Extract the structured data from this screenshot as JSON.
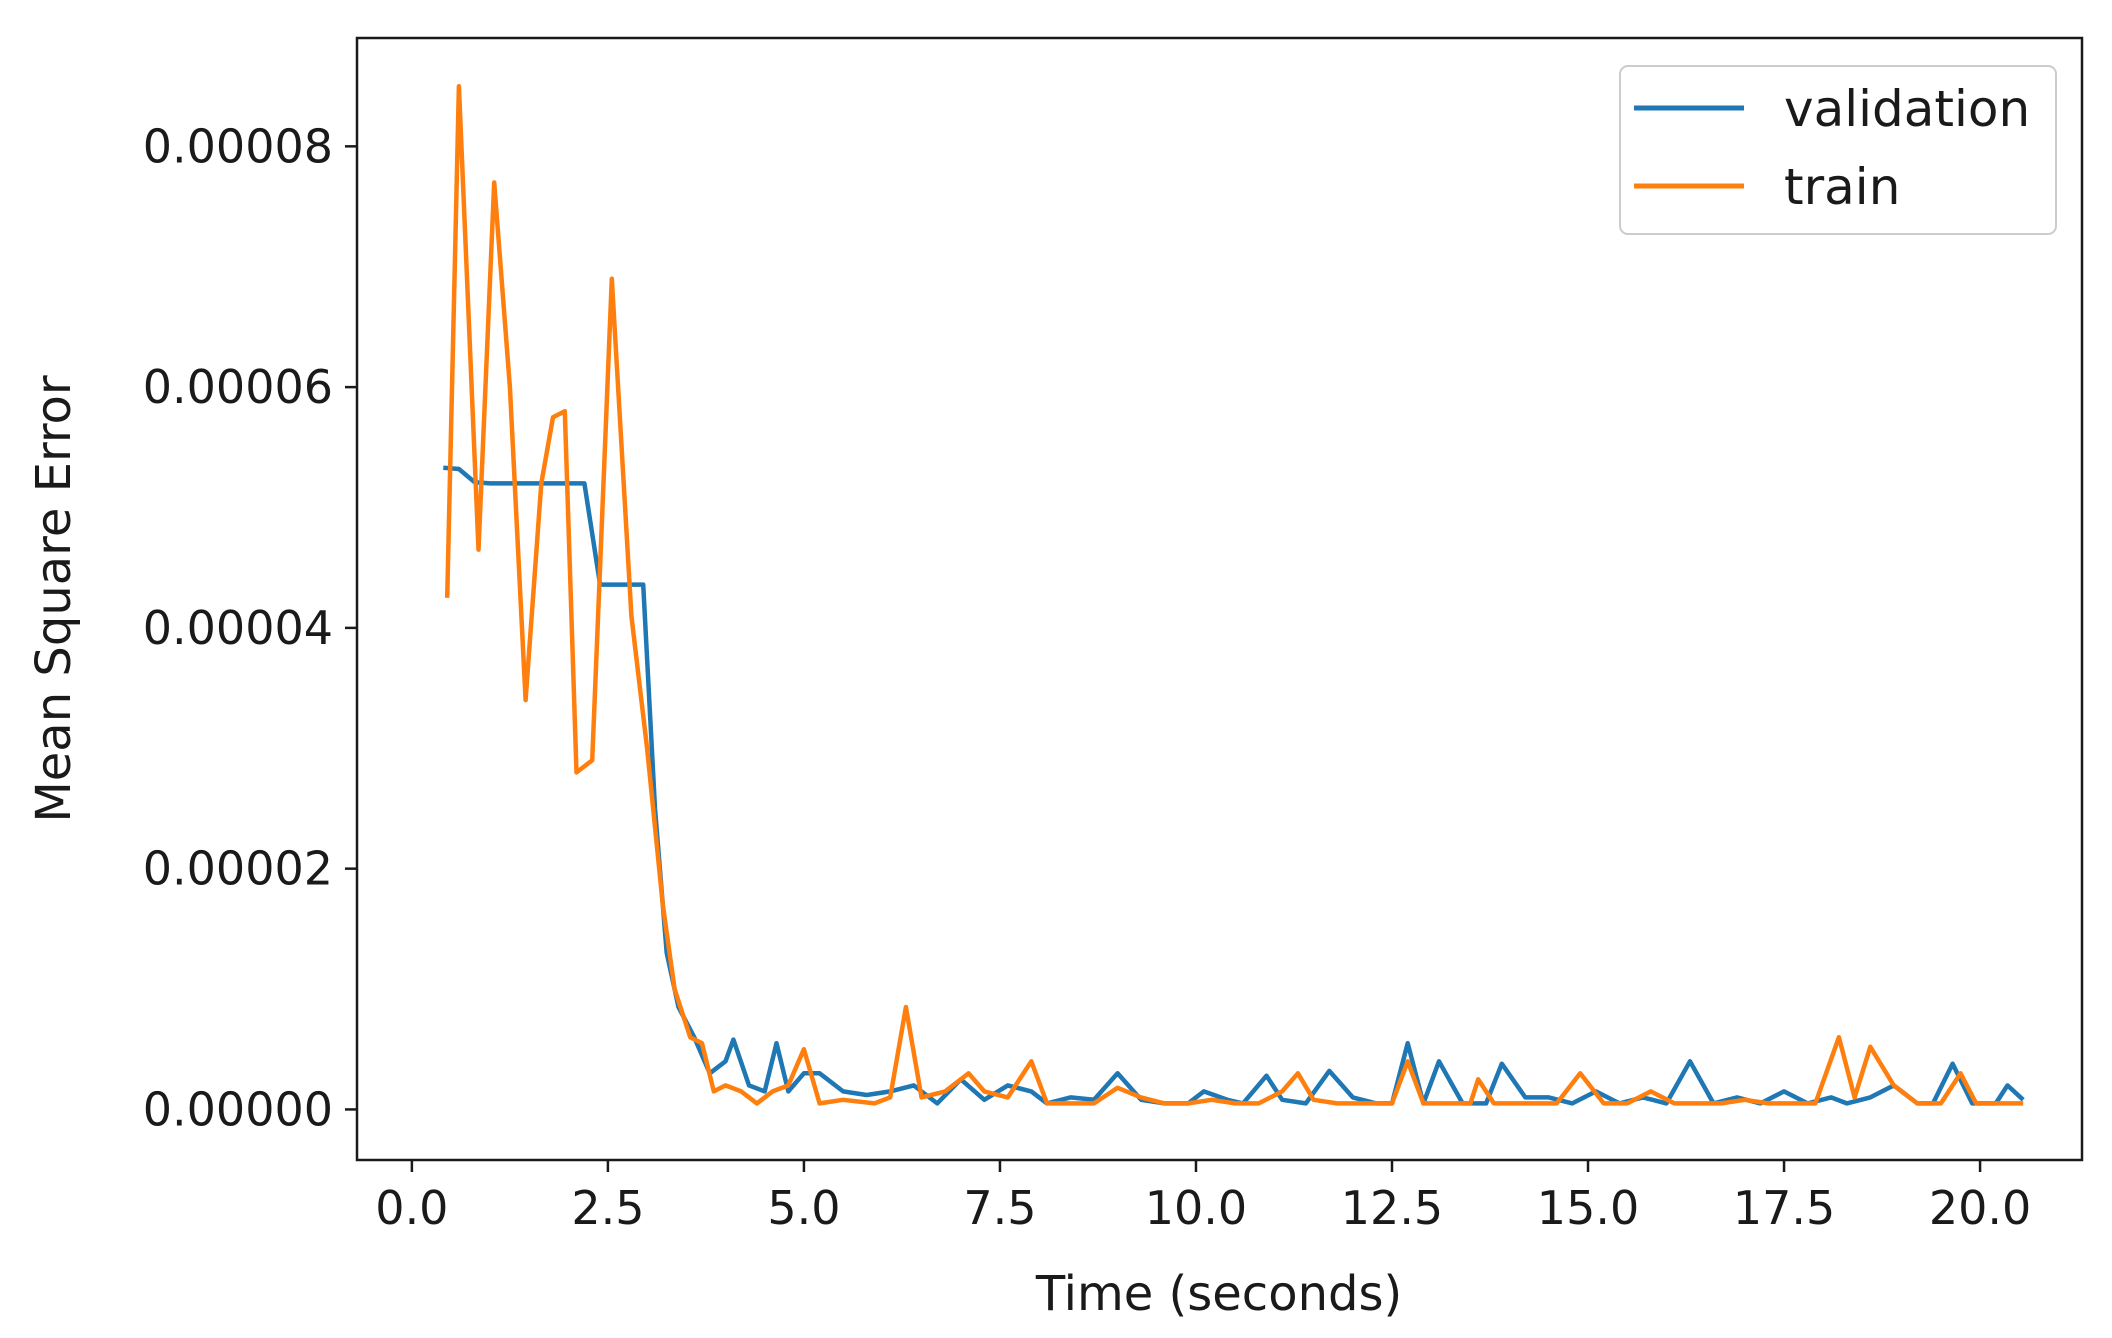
{
  "chart_data": {
    "type": "line",
    "title": "",
    "xlabel": "Time (seconds)",
    "ylabel": "Mean Square Error",
    "xlim": [
      -0.7,
      21.3
    ],
    "ylim": [
      -4.2e-06,
      8.9e-05
    ],
    "xticks": [
      {
        "value": 0.0,
        "label": "0.0"
      },
      {
        "value": 2.5,
        "label": "2.5"
      },
      {
        "value": 5.0,
        "label": "5.0"
      },
      {
        "value": 7.5,
        "label": "7.5"
      },
      {
        "value": 10.0,
        "label": "10.0"
      },
      {
        "value": 12.5,
        "label": "12.5"
      },
      {
        "value": 15.0,
        "label": "15.0"
      },
      {
        "value": 17.5,
        "label": "17.5"
      },
      {
        "value": 20.0,
        "label": "20.0"
      }
    ],
    "yticks": [
      {
        "value": 0.0,
        "label": "0.00000"
      },
      {
        "value": 2e-05,
        "label": "0.00002"
      },
      {
        "value": 4e-05,
        "label": "0.00004"
      },
      {
        "value": 6e-05,
        "label": "0.00006"
      },
      {
        "value": 8e-05,
        "label": "0.00008"
      }
    ],
    "grid": false,
    "legend_position": "top-right",
    "series": [
      {
        "name": "validation",
        "color": "#1f77b4",
        "points": [
          [
            0.4,
            5.33e-05
          ],
          [
            0.6,
            5.32e-05
          ],
          [
            0.8,
            5.21e-05
          ],
          [
            1.0,
            5.2e-05
          ],
          [
            1.3,
            5.2e-05
          ],
          [
            1.6,
            5.2e-05
          ],
          [
            1.9,
            5.2e-05
          ],
          [
            2.1,
            5.2e-05
          ],
          [
            2.2,
            5.2e-05
          ],
          [
            2.4,
            4.36e-05
          ],
          [
            2.6,
            4.36e-05
          ],
          [
            2.8,
            4.36e-05
          ],
          [
            2.95,
            4.36e-05
          ],
          [
            3.1,
            2.5e-05
          ],
          [
            3.25,
            1.3e-05
          ],
          [
            3.4,
            8.5e-06
          ],
          [
            3.6,
            6e-06
          ],
          [
            3.8,
            3e-06
          ],
          [
            4.0,
            4e-06
          ],
          [
            4.1,
            5.8e-06
          ],
          [
            4.3,
            2e-06
          ],
          [
            4.5,
            1.5e-06
          ],
          [
            4.65,
            5.5e-06
          ],
          [
            4.8,
            1.5e-06
          ],
          [
            5.0,
            3e-06
          ],
          [
            5.2,
            3e-06
          ],
          [
            5.5,
            1.5e-06
          ],
          [
            5.8,
            1.2e-06
          ],
          [
            6.1,
            1.5e-06
          ],
          [
            6.4,
            2e-06
          ],
          [
            6.7,
            5e-07
          ],
          [
            7.0,
            2.5e-06
          ],
          [
            7.3,
            8e-07
          ],
          [
            7.6,
            2e-06
          ],
          [
            7.9,
            1.5e-06
          ],
          [
            8.1,
            5e-07
          ],
          [
            8.4,
            1e-06
          ],
          [
            8.7,
            8e-07
          ],
          [
            9.0,
            3e-06
          ],
          [
            9.3,
            8e-07
          ],
          [
            9.6,
            5e-07
          ],
          [
            9.9,
            5e-07
          ],
          [
            10.1,
            1.5e-06
          ],
          [
            10.4,
            8e-07
          ],
          [
            10.6,
            5e-07
          ],
          [
            10.9,
            2.8e-06
          ],
          [
            11.1,
            8e-07
          ],
          [
            11.4,
            5e-07
          ],
          [
            11.7,
            3.2e-06
          ],
          [
            12.0,
            1e-06
          ],
          [
            12.3,
            5e-07
          ],
          [
            12.5,
            5e-07
          ],
          [
            12.7,
            5.5e-06
          ],
          [
            12.9,
            5e-07
          ],
          [
            13.1,
            4e-06
          ],
          [
            13.4,
            5e-07
          ],
          [
            13.7,
            5e-07
          ],
          [
            13.9,
            3.8e-06
          ],
          [
            14.2,
            1e-06
          ],
          [
            14.5,
            1e-06
          ],
          [
            14.8,
            5e-07
          ],
          [
            15.1,
            1.5e-06
          ],
          [
            15.4,
            5e-07
          ],
          [
            15.7,
            1e-06
          ],
          [
            16.0,
            5e-07
          ],
          [
            16.3,
            4e-06
          ],
          [
            16.6,
            5e-07
          ],
          [
            16.9,
            1e-06
          ],
          [
            17.2,
            5e-07
          ],
          [
            17.5,
            1.5e-06
          ],
          [
            17.8,
            5e-07
          ],
          [
            18.1,
            1e-06
          ],
          [
            18.3,
            5e-07
          ],
          [
            18.6,
            1e-06
          ],
          [
            18.9,
            2e-06
          ],
          [
            19.2,
            5e-07
          ],
          [
            19.4,
            5e-07
          ],
          [
            19.65,
            3.8e-06
          ],
          [
            19.9,
            5e-07
          ],
          [
            20.2,
            5e-07
          ],
          [
            20.35,
            2e-06
          ],
          [
            20.55,
            8e-07
          ]
        ]
      },
      {
        "name": "train",
        "color": "#ff7f0e",
        "points": [
          [
            0.45,
            4.25e-05
          ],
          [
            0.6,
            8.5e-05
          ],
          [
            0.85,
            4.65e-05
          ],
          [
            1.05,
            7.7e-05
          ],
          [
            1.25,
            6e-05
          ],
          [
            1.45,
            3.4e-05
          ],
          [
            1.65,
            5.2e-05
          ],
          [
            1.8,
            5.75e-05
          ],
          [
            1.95,
            5.8e-05
          ],
          [
            2.1,
            2.8e-05
          ],
          [
            2.3,
            2.9e-05
          ],
          [
            2.55,
            6.9e-05
          ],
          [
            2.8,
            4.1e-05
          ],
          [
            3.0,
            3e-05
          ],
          [
            3.2,
            1.7e-05
          ],
          [
            3.35,
            1e-05
          ],
          [
            3.55,
            6e-06
          ],
          [
            3.7,
            5.5e-06
          ],
          [
            3.85,
            1.5e-06
          ],
          [
            4.0,
            2e-06
          ],
          [
            4.2,
            1.5e-06
          ],
          [
            4.4,
            5e-07
          ],
          [
            4.6,
            1.5e-06
          ],
          [
            4.8,
            2e-06
          ],
          [
            5.0,
            5e-06
          ],
          [
            5.2,
            5e-07
          ],
          [
            5.5,
            8e-07
          ],
          [
            5.9,
            5e-07
          ],
          [
            6.1,
            1e-06
          ],
          [
            6.3,
            8.5e-06
          ],
          [
            6.5,
            1e-06
          ],
          [
            6.8,
            1.5e-06
          ],
          [
            7.1,
            3e-06
          ],
          [
            7.3,
            1.5e-06
          ],
          [
            7.6,
            1e-06
          ],
          [
            7.9,
            4e-06
          ],
          [
            8.1,
            5e-07
          ],
          [
            8.4,
            5e-07
          ],
          [
            8.7,
            5e-07
          ],
          [
            9.0,
            1.8e-06
          ],
          [
            9.3,
            1e-06
          ],
          [
            9.6,
            5e-07
          ],
          [
            9.9,
            5e-07
          ],
          [
            10.2,
            8e-07
          ],
          [
            10.5,
            5e-07
          ],
          [
            10.8,
            5e-07
          ],
          [
            11.1,
            1.5e-06
          ],
          [
            11.3,
            3e-06
          ],
          [
            11.5,
            8e-07
          ],
          [
            11.8,
            5e-07
          ],
          [
            12.1,
            5e-07
          ],
          [
            12.5,
            5e-07
          ],
          [
            12.7,
            4e-06
          ],
          [
            12.9,
            5e-07
          ],
          [
            13.2,
            5e-07
          ],
          [
            13.5,
            5e-07
          ],
          [
            13.6,
            2.5e-06
          ],
          [
            13.8,
            5e-07
          ],
          [
            14.2,
            5e-07
          ],
          [
            14.6,
            5e-07
          ],
          [
            14.9,
            3e-06
          ],
          [
            15.2,
            5e-07
          ],
          [
            15.5,
            5e-07
          ],
          [
            15.8,
            1.5e-06
          ],
          [
            16.1,
            5e-07
          ],
          [
            16.4,
            5e-07
          ],
          [
            16.7,
            5e-07
          ],
          [
            17.0,
            8e-07
          ],
          [
            17.3,
            5e-07
          ],
          [
            17.6,
            5e-07
          ],
          [
            17.9,
            5e-07
          ],
          [
            18.2,
            6e-06
          ],
          [
            18.4,
            1e-06
          ],
          [
            18.6,
            5.2e-06
          ],
          [
            18.9,
            2e-06
          ],
          [
            19.2,
            5e-07
          ],
          [
            19.5,
            5e-07
          ],
          [
            19.75,
            3e-06
          ],
          [
            19.95,
            5e-07
          ],
          [
            20.2,
            5e-07
          ],
          [
            20.55,
            5e-07
          ]
        ]
      }
    ]
  }
}
